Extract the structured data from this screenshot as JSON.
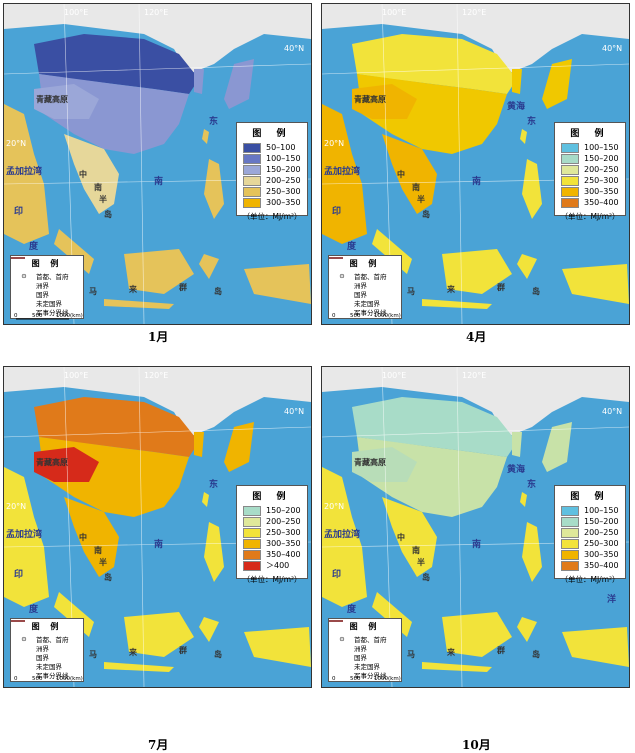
{
  "panels": [
    {
      "month": "1月",
      "legend": {
        "title": "图 例",
        "classes": [
          {
            "label": "50–100",
            "color": "#3a4fa3"
          },
          {
            "label": "100–150",
            "color": "#6777c4"
          },
          {
            "label": "150–200",
            "color": "#9ba7d8"
          },
          {
            "label": "200–250",
            "color": "#e6d79a"
          },
          {
            "label": "250–300",
            "color": "#e5c35a"
          },
          {
            "label": "300–350",
            "color": "#f0b400"
          }
        ],
        "unit": "（单位：MJ/m²）"
      },
      "fills": {
        "north": "#3a4fa3",
        "mid": "#8a97d2",
        "tibet": "#9ba7d8",
        "south": "#e6d79a",
        "sea_land": "#e5c35a"
      }
    },
    {
      "month": "4月",
      "legend": {
        "title": "图 例",
        "classes": [
          {
            "label": "100–150",
            "color": "#5fc0e0"
          },
          {
            "label": "150–200",
            "color": "#a8dcc8"
          },
          {
            "label": "200–250",
            "color": "#dfe89a"
          },
          {
            "label": "250–300",
            "color": "#f2e33a"
          },
          {
            "label": "300–350",
            "color": "#f0b400"
          },
          {
            "label": "350–400",
            "color": "#e07a1a"
          }
        ],
        "unit": "（单位：MJ/m²）"
      },
      "fills": {
        "north": "#f2e33a",
        "mid": "#f0c800",
        "tibet": "#f0b400",
        "south": "#f0b400",
        "sea_land": "#f2e33a"
      }
    },
    {
      "month": "7月",
      "legend": {
        "title": "图 例",
        "classes": [
          {
            "label": "150–200",
            "color": "#a8dcc8"
          },
          {
            "label": "200–250",
            "color": "#dfe89a"
          },
          {
            "label": "250–300",
            "color": "#f2e33a"
          },
          {
            "label": "300–350",
            "color": "#f0b400"
          },
          {
            "label": "350–400",
            "color": "#e07a1a"
          },
          {
            "label": "＞400",
            "color": "#d62a1a"
          }
        ],
        "unit": "（单位：MJ/m²）"
      },
      "fills": {
        "north": "#e07a1a",
        "mid": "#f0b400",
        "tibet": "#d62a1a",
        "south": "#f0b400",
        "sea_land": "#f2e33a"
      }
    },
    {
      "month": "10月",
      "legend": {
        "title": "图 例",
        "classes": [
          {
            "label": "100–150",
            "color": "#5fc0e0"
          },
          {
            "label": "150–200",
            "color": "#a8dcc8"
          },
          {
            "label": "200–250",
            "color": "#dfe89a"
          },
          {
            "label": "250–300",
            "color": "#f2e33a"
          },
          {
            "label": "300–350",
            "color": "#f0b400"
          },
          {
            "label": "350–400",
            "color": "#e07a1a"
          }
        ],
        "unit": "（单位：MJ/m²）"
      },
      "fills": {
        "north": "#a8dcc8",
        "mid": "#c8e2a8",
        "tibet": "#b8ddb8",
        "south": "#f2e33a",
        "sea_land": "#f2e33a"
      }
    }
  ],
  "symbols": {
    "title": "图 例",
    "items": [
      {
        "label": "首都、首府",
        "icon": "capital-icon"
      },
      {
        "label": "洲界",
        "icon": "continent-boundary-icon"
      },
      {
        "label": "国界",
        "icon": "national-boundary-icon"
      },
      {
        "label": "未定国界",
        "icon": "undetermined-boundary-icon"
      },
      {
        "label": "军事分界线",
        "icon": "military-line-icon"
      }
    ]
  },
  "scale_labels": [
    "0",
    "500",
    "1000(km)"
  ],
  "grid_labels": {
    "lon_100": "100°E",
    "lon_120": "120°E",
    "lat_40": "40°N",
    "lat_20": "20°N"
  },
  "place_names": {
    "plateau": "青藏高原",
    "bay": "孟加拉湾",
    "ocean_in": "印",
    "ocean_du": "度",
    "sea_east": "东",
    "sea_yellow": "黄海",
    "ocean_ping": "平",
    "ocean_yang": "洋",
    "ocean_tai": "太",
    "sea_south": "南",
    "pen_zhong": "中",
    "pen_nan": "南",
    "pen_ban": "半",
    "pen_dao": "岛",
    "arch_ma": "马",
    "arch_lai": "来",
    "arch_qun": "群",
    "arch_dao": "岛"
  }
}
